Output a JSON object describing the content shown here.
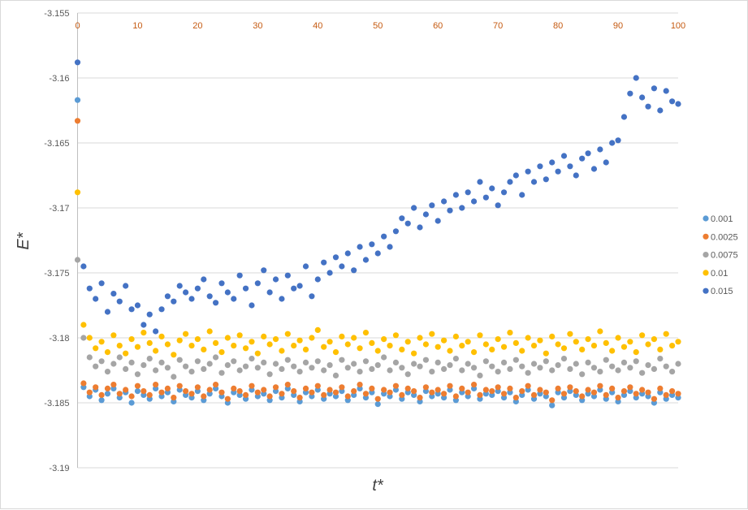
{
  "chart_data": {
    "type": "scatter",
    "title": "",
    "xlabel": "t*",
    "ylabel": "E*",
    "xlim": [
      0,
      100
    ],
    "ylim": [
      -3.19,
      -3.155
    ],
    "x_ticks": [
      "0",
      "10",
      "20",
      "30",
      "40",
      "50",
      "60",
      "70",
      "80",
      "90",
      "100"
    ],
    "y_ticks": [
      "-3.155",
      "-3.16",
      "-3.165",
      "-3.17",
      "-3.175",
      "-3.18",
      "-3.185",
      "-3.19"
    ],
    "x_tick_values": [
      0,
      10,
      20,
      30,
      40,
      50,
      60,
      70,
      80,
      90,
      100
    ],
    "y_tick_values": [
      -3.155,
      -3.16,
      -3.165,
      -3.17,
      -3.175,
      -3.18,
      -3.185,
      -3.19
    ],
    "grid": "horizontal",
    "x_axis_position": "top",
    "legend_placement": "right",
    "series": [
      {
        "name": "0.001",
        "color": "#5B9BD5",
        "values": [
          -3.1617,
          -3.1838,
          -3.1845,
          -3.184,
          -3.1848,
          -3.1843,
          -3.1839,
          -3.1846,
          -3.1842,
          -3.185,
          -3.1841,
          -3.1844,
          -3.1847,
          -3.1839,
          -3.1845,
          -3.1842,
          -3.1849,
          -3.184,
          -3.1844,
          -3.1846,
          -3.1841,
          -3.1848,
          -3.1843,
          -3.1839,
          -3.1845,
          -3.185,
          -3.1842,
          -3.1844,
          -3.1847,
          -3.184,
          -3.1845,
          -3.1843,
          -3.1848,
          -3.1841,
          -3.1846,
          -3.1839,
          -3.1844,
          -3.1849,
          -3.1842,
          -3.1845,
          -3.184,
          -3.1847,
          -3.1843,
          -3.1845,
          -3.1841,
          -3.1848,
          -3.1844,
          -3.1839,
          -3.1846,
          -3.1842,
          -3.1851,
          -3.1843,
          -3.1845,
          -3.184,
          -3.1847,
          -3.1842,
          -3.1844,
          -3.1849,
          -3.1841,
          -3.1845,
          -3.1843,
          -3.1846,
          -3.184,
          -3.1848,
          -3.1842,
          -3.1845,
          -3.1839,
          -3.1847,
          -3.1843,
          -3.1844,
          -3.1841,
          -3.1846,
          -3.1842,
          -3.1849,
          -3.1844,
          -3.184,
          -3.1847,
          -3.1843,
          -3.1845,
          -3.1852,
          -3.1842,
          -3.1846,
          -3.1841,
          -3.1844,
          -3.1848,
          -3.1843,
          -3.1845,
          -3.184,
          -3.1847,
          -3.1842,
          -3.1849,
          -3.1844,
          -3.1841,
          -3.1846,
          -3.1843,
          -3.1845,
          -3.185,
          -3.1842,
          -3.1847,
          -3.1844,
          -3.1846
        ]
      },
      {
        "name": "0.0025",
        "color": "#ED7D31",
        "values": [
          -3.1633,
          -3.1835,
          -3.1842,
          -3.1838,
          -3.1844,
          -3.1839,
          -3.1836,
          -3.1843,
          -3.184,
          -3.1845,
          -3.1837,
          -3.1841,
          -3.1844,
          -3.1836,
          -3.1842,
          -3.1839,
          -3.1846,
          -3.1837,
          -3.1841,
          -3.1843,
          -3.1838,
          -3.1845,
          -3.184,
          -3.1836,
          -3.1842,
          -3.1847,
          -3.1839,
          -3.1841,
          -3.1844,
          -3.1837,
          -3.1842,
          -3.184,
          -3.1845,
          -3.1838,
          -3.1843,
          -3.1836,
          -3.1841,
          -3.1846,
          -3.1839,
          -3.1842,
          -3.1837,
          -3.1844,
          -3.184,
          -3.1842,
          -3.1838,
          -3.1845,
          -3.1841,
          -3.1836,
          -3.1843,
          -3.1839,
          -3.1847,
          -3.184,
          -3.1842,
          -3.1837,
          -3.1844,
          -3.1839,
          -3.1841,
          -3.1846,
          -3.1838,
          -3.1842,
          -3.184,
          -3.1843,
          -3.1837,
          -3.1845,
          -3.1839,
          -3.1842,
          -3.1836,
          -3.1844,
          -3.184,
          -3.1841,
          -3.1838,
          -3.1843,
          -3.1839,
          -3.1846,
          -3.1841,
          -3.1837,
          -3.1844,
          -3.184,
          -3.1842,
          -3.1848,
          -3.1839,
          -3.1843,
          -3.1838,
          -3.1841,
          -3.1845,
          -3.184,
          -3.1842,
          -3.1837,
          -3.1844,
          -3.1839,
          -3.1846,
          -3.1841,
          -3.1838,
          -3.1843,
          -3.184,
          -3.1842,
          -3.1847,
          -3.1839,
          -3.1844,
          -3.1841,
          -3.1843
        ]
      },
      {
        "name": "0.0075",
        "color": "#A5A5A5",
        "values": [
          -3.174,
          -3.18,
          -3.1815,
          -3.1822,
          -3.1818,
          -3.1826,
          -3.182,
          -3.1815,
          -3.1824,
          -3.1819,
          -3.1828,
          -3.1821,
          -3.1816,
          -3.1825,
          -3.1819,
          -3.1823,
          -3.183,
          -3.1817,
          -3.1822,
          -3.1826,
          -3.1818,
          -3.1824,
          -3.182,
          -3.1815,
          -3.1827,
          -3.1821,
          -3.1818,
          -3.1825,
          -3.1822,
          -3.1816,
          -3.1823,
          -3.1819,
          -3.1828,
          -3.182,
          -3.1824,
          -3.1817,
          -3.1822,
          -3.1826,
          -3.1819,
          -3.1823,
          -3.1818,
          -3.1825,
          -3.1821,
          -3.1829,
          -3.1817,
          -3.1823,
          -3.182,
          -3.1826,
          -3.1818,
          -3.1824,
          -3.1821,
          -3.1815,
          -3.1825,
          -3.1819,
          -3.1823,
          -3.1828,
          -3.182,
          -3.1822,
          -3.1817,
          -3.1826,
          -3.1819,
          -3.1824,
          -3.1821,
          -3.1816,
          -3.1825,
          -3.182,
          -3.1823,
          -3.1829,
          -3.1818,
          -3.1822,
          -3.1826,
          -3.1819,
          -3.1824,
          -3.1817,
          -3.1822,
          -3.1827,
          -3.182,
          -3.1823,
          -3.1818,
          -3.1825,
          -3.1821,
          -3.1816,
          -3.1824,
          -3.182,
          -3.1828,
          -3.1819,
          -3.1823,
          -3.1826,
          -3.1817,
          -3.1822,
          -3.1825,
          -3.1819,
          -3.1823,
          -3.1818,
          -3.1827,
          -3.1821,
          -3.1824,
          -3.1816,
          -3.1822,
          -3.1826,
          -3.182
        ]
      },
      {
        "name": "0.01",
        "color": "#FFC000",
        "values": [
          -3.1688,
          -3.179,
          -3.18,
          -3.1808,
          -3.1803,
          -3.1811,
          -3.1798,
          -3.1806,
          -3.1812,
          -3.1801,
          -3.1807,
          -3.1796,
          -3.1804,
          -3.181,
          -3.1799,
          -3.1805,
          -3.1813,
          -3.1802,
          -3.1797,
          -3.1806,
          -3.1801,
          -3.1809,
          -3.1795,
          -3.1804,
          -3.1811,
          -3.18,
          -3.1806,
          -3.1798,
          -3.1808,
          -3.1803,
          -3.1812,
          -3.1799,
          -3.1805,
          -3.1801,
          -3.181,
          -3.1797,
          -3.1806,
          -3.1802,
          -3.1809,
          -3.18,
          -3.1794,
          -3.1807,
          -3.1803,
          -3.1811,
          -3.1799,
          -3.1805,
          -3.18,
          -3.1808,
          -3.1796,
          -3.1804,
          -3.181,
          -3.1801,
          -3.1806,
          -3.1798,
          -3.1809,
          -3.1803,
          -3.1812,
          -3.18,
          -3.1805,
          -3.1797,
          -3.1807,
          -3.1802,
          -3.181,
          -3.1799,
          -3.1806,
          -3.1803,
          -3.1811,
          -3.1798,
          -3.1805,
          -3.1809,
          -3.1801,
          -3.1807,
          -3.1796,
          -3.1804,
          -3.181,
          -3.18,
          -3.1806,
          -3.1802,
          -3.1812,
          -3.1799,
          -3.1805,
          -3.1808,
          -3.1797,
          -3.1803,
          -3.1809,
          -3.1801,
          -3.1806,
          -3.1795,
          -3.1804,
          -3.181,
          -3.18,
          -3.1807,
          -3.1803,
          -3.1811,
          -3.1798,
          -3.1805,
          -3.1801,
          -3.1809,
          -3.1797,
          -3.1806,
          -3.1803
        ]
      },
      {
        "name": "0.015",
        "color": "#4472C4",
        "values": [
          -3.1588,
          -3.1745,
          -3.1762,
          -3.177,
          -3.1758,
          -3.178,
          -3.1766,
          -3.1772,
          -3.176,
          -3.1778,
          -3.1775,
          -3.179,
          -3.1782,
          -3.1795,
          -3.1778,
          -3.1768,
          -3.1772,
          -3.176,
          -3.1765,
          -3.177,
          -3.1762,
          -3.1755,
          -3.1768,
          -3.1773,
          -3.1758,
          -3.1765,
          -3.177,
          -3.1752,
          -3.1762,
          -3.1775,
          -3.1758,
          -3.1748,
          -3.1765,
          -3.1755,
          -3.177,
          -3.1752,
          -3.1762,
          -3.176,
          -3.1745,
          -3.1768,
          -3.1755,
          -3.1742,
          -3.175,
          -3.1738,
          -3.1745,
          -3.1735,
          -3.1748,
          -3.173,
          -3.174,
          -3.1728,
          -3.1735,
          -3.1722,
          -3.173,
          -3.1718,
          -3.1708,
          -3.1712,
          -3.17,
          -3.1715,
          -3.1705,
          -3.1698,
          -3.171,
          -3.1695,
          -3.1702,
          -3.169,
          -3.17,
          -3.1688,
          -3.1695,
          -3.168,
          -3.1692,
          -3.1685,
          -3.1698,
          -3.1688,
          -3.168,
          -3.1675,
          -3.169,
          -3.1672,
          -3.168,
          -3.1668,
          -3.1678,
          -3.1665,
          -3.1672,
          -3.166,
          -3.1668,
          -3.1675,
          -3.1662,
          -3.1658,
          -3.167,
          -3.1655,
          -3.1665,
          -3.165,
          -3.1648,
          -3.163,
          -3.1612,
          -3.16,
          -3.1615,
          -3.1622,
          -3.1608,
          -3.1625,
          -3.161,
          -3.1618,
          -3.162
        ]
      }
    ]
  }
}
